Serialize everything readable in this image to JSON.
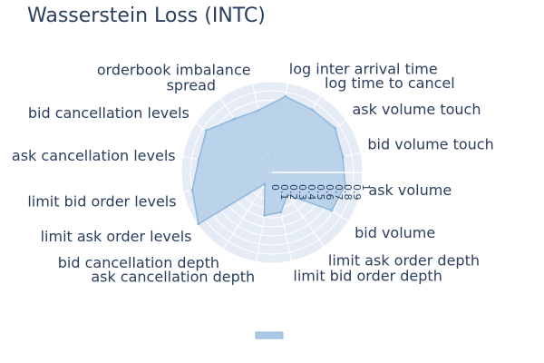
{
  "chart_data": {
    "type": "radar",
    "title": "Wasserstein Loss (INTC)",
    "categories": [
      "ask volume touch",
      "bid volume touch",
      "ask volume",
      "bid volume",
      "limit ask order depth",
      "limit bid order depth",
      "ask cancellation depth",
      "bid cancellation depth",
      "limit ask order levels",
      "limit bid order levels",
      "ask cancellation levels",
      "bid cancellation levels",
      "spread",
      "orderbook imbalance",
      "log inter arrival time",
      "log time to cancel"
    ],
    "series": [
      {
        "name": "",
        "values": [
          0.85,
          0.8,
          0.82,
          0.78,
          0.3,
          0.45,
          0.48,
          0.15,
          0.99,
          0.9,
          0.82,
          0.86,
          0.72,
          0.7,
          0.85,
          0.82
        ]
      }
    ],
    "r_range": [
      0,
      1
    ],
    "radial_ticks": [
      "0",
      "0.1",
      "0.2",
      "0.3",
      "0.4",
      "0.5",
      "0.6",
      "0.7",
      "0.8",
      "0.9",
      "1"
    ],
    "fill_color": "#a9c8e4",
    "line_color": "#8fb6dc",
    "grid_bg_color": "#e5ecf6",
    "legend": "bottom-center"
  }
}
